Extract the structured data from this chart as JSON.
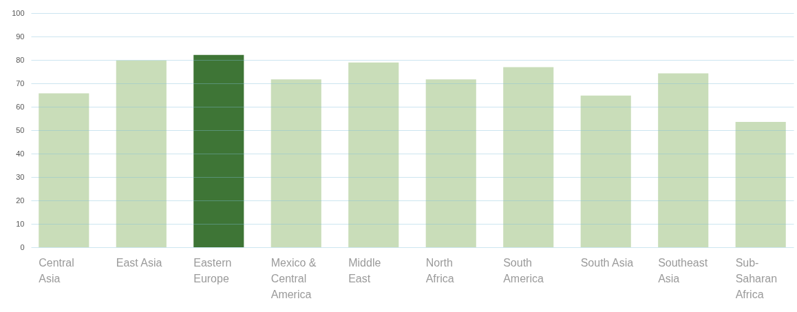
{
  "chart_data": {
    "type": "bar",
    "categories": [
      "Central Asia",
      "East Asia",
      "Eastern Europe",
      "Mexico & Central America",
      "Middle East",
      "North Africa",
      "South America",
      "South Asia",
      "Southeast Asia",
      "Sub-Saharan Africa"
    ],
    "values": [
      65.7,
      79.8,
      82.1,
      71.7,
      78.9,
      71.7,
      76.9,
      64.8,
      74.3,
      53.5
    ],
    "colors": [
      "#c9ddb9",
      "#c9ddb9",
      "#3e7536",
      "#c9ddb9",
      "#c9ddb9",
      "#c9ddb9",
      "#c9ddb9",
      "#c9ddb9",
      "#c9ddb9",
      "#c9ddb9"
    ],
    "ylim": [
      0,
      100
    ],
    "yticks": [
      0,
      10,
      20,
      30,
      40,
      50,
      60,
      70,
      80,
      90,
      100
    ],
    "grid": "y"
  }
}
